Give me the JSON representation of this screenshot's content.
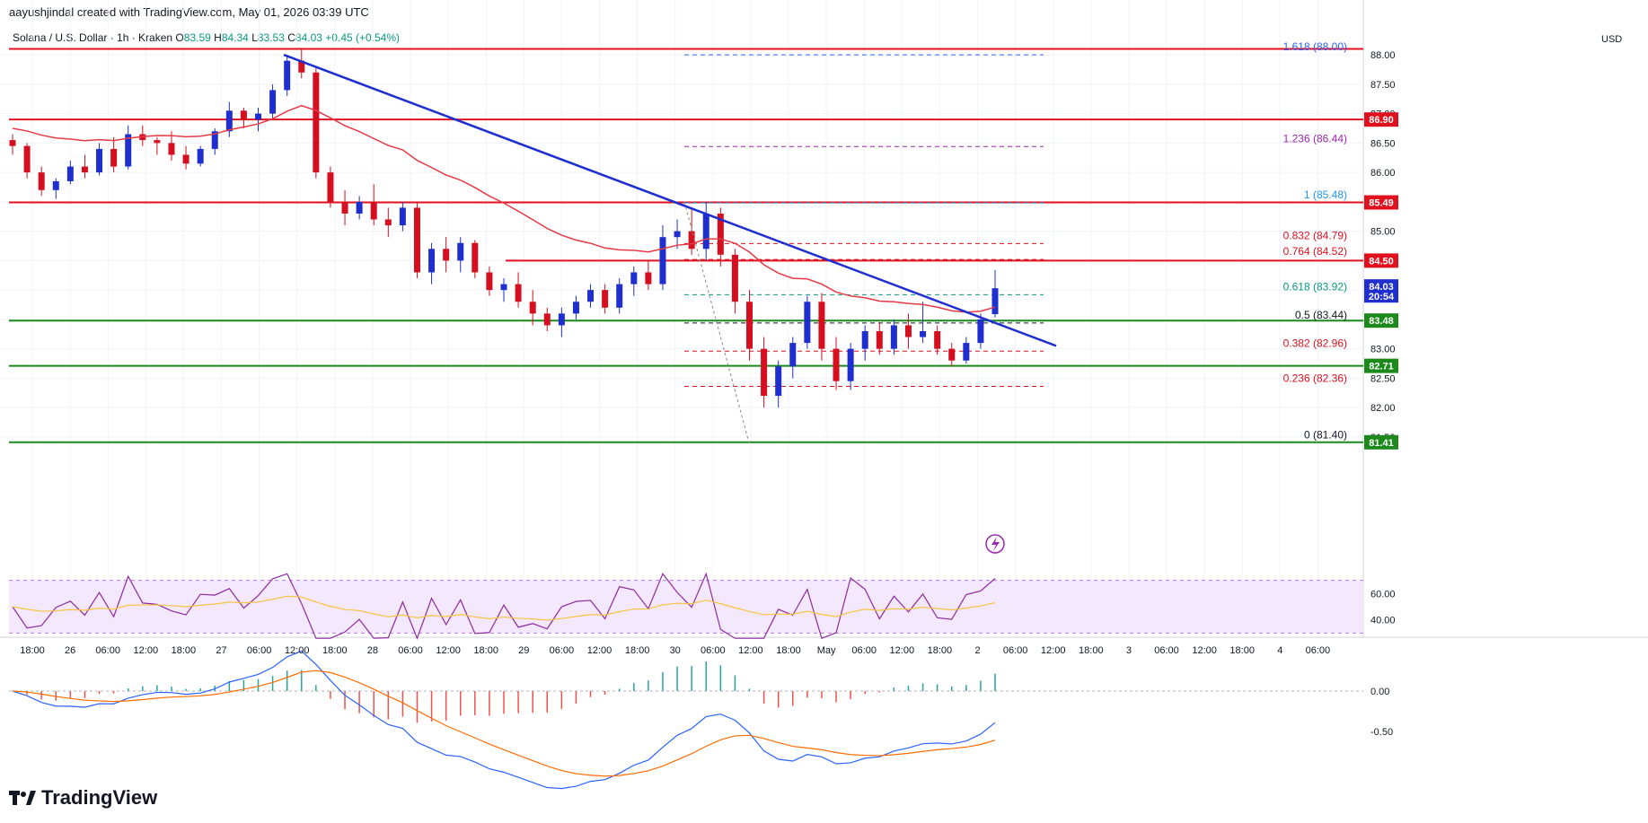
{
  "header": {
    "creator": "aayushjindal created with TradingView.com, May 01, 2026 03:39 UTC"
  },
  "symbol_line": {
    "title": "Solana / U.S. Dollar · 1h · Kraken",
    "open_label": "O",
    "open": "83.59",
    "high_label": "H",
    "high": "84.34",
    "low_label": "L",
    "low": "83.53",
    "close_label": "C",
    "close": "84.03",
    "change": "+0.45 (+0.54%)"
  },
  "currency": "USD",
  "brand": "TradingView",
  "chart_data": {
    "type": "candlestick",
    "symbol": "Solana / U.S. Dollar",
    "interval": "1h",
    "exchange": "Kraken",
    "ylim": [
      81.3,
      88.2
    ],
    "x_ticks": [
      "18:00",
      "26",
      "06:00",
      "12:00",
      "18:00",
      "27",
      "06:00",
      "12:00",
      "18:00",
      "28",
      "06:00",
      "12:00",
      "18:00",
      "29",
      "06:00",
      "12:00",
      "18:00",
      "30",
      "06:00",
      "12:00",
      "18:00",
      "May",
      "06:00",
      "12:00",
      "18:00",
      "2",
      "06:00",
      "12:00",
      "18:00",
      "3",
      "06:00",
      "12:00",
      "18:00",
      "4",
      "06:00"
    ],
    "y_ticks": [
      "88.00",
      "87.50",
      "87.00",
      "86.50",
      "86.00",
      "85.50",
      "85.00",
      "84.50",
      "84.00",
      "83.50",
      "83.00",
      "82.50",
      "82.00",
      "81.50"
    ],
    "horizontal_levels": [
      {
        "label": "86.90",
        "value": 86.9,
        "color": "#e0101e"
      },
      {
        "label": "85.49",
        "value": 85.49,
        "color": "#e0101e"
      },
      {
        "label": "84.50",
        "value": 84.5,
        "color": "#e0101e"
      },
      {
        "label": "83.48",
        "value": 83.48,
        "color": "#1b8a1b"
      },
      {
        "label": "82.71",
        "value": 82.71,
        "color": "#1b8a1b"
      },
      {
        "label": "81.41",
        "value": 81.41,
        "color": "#1b8a1b"
      }
    ],
    "top_level": 88.1,
    "last_price": {
      "label": "84.03",
      "countdown": "20:54",
      "value": 84.03
    },
    "fib_levels": [
      {
        "label": "1.618 (88.00)",
        "value": 88.0,
        "color": "#2962ff"
      },
      {
        "label": "1.236 (86.44)",
        "value": 86.44,
        "color": "#9c27b0"
      },
      {
        "label": "1 (85.48)",
        "value": 85.48,
        "color": "#2196f3"
      },
      {
        "label": "0.832 (84.79)",
        "value": 84.79,
        "color": "#e0101e"
      },
      {
        "label": "0.764 (84.52)",
        "value": 84.52,
        "color": "#e0101e"
      },
      {
        "label": "0.618 (83.92)",
        "value": 83.92,
        "color": "#089981"
      },
      {
        "label": "0.5 (83.44)",
        "value": 83.44,
        "color": "#131722"
      },
      {
        "label": "0.382 (82.96)",
        "value": 82.96,
        "color": "#e0101e"
      },
      {
        "label": "0.236 (82.36)",
        "value": 82.36,
        "color": "#e0101e"
      },
      {
        "label": "0 (81.40)",
        "value": 81.4,
        "color": "#131722"
      }
    ],
    "trendline": {
      "from": [
        0.0,
        88.0
      ],
      "to": [
        0.0,
        83.05
      ],
      "color": "#1f2fcf"
    },
    "rsi": {
      "y_ticks": [
        "60.00",
        "40.00"
      ],
      "band": [
        30,
        70
      ]
    },
    "macd": {
      "y_ticks": [
        "0.00",
        "-0.50"
      ]
    },
    "candles": [
      [
        86.55,
        86.65,
        86.3,
        86.45
      ],
      [
        86.45,
        86.5,
        85.9,
        86.0
      ],
      [
        86.0,
        86.1,
        85.6,
        85.7
      ],
      [
        85.7,
        85.9,
        85.55,
        85.85
      ],
      [
        85.85,
        86.2,
        85.8,
        86.1
      ],
      [
        86.1,
        86.3,
        85.9,
        86.0
      ],
      [
        86.0,
        86.5,
        85.95,
        86.4
      ],
      [
        86.4,
        86.6,
        86.0,
        86.1
      ],
      [
        86.1,
        86.8,
        86.05,
        86.65
      ],
      [
        86.65,
        86.8,
        86.45,
        86.55
      ],
      [
        86.55,
        86.6,
        86.3,
        86.5
      ],
      [
        86.5,
        86.7,
        86.2,
        86.3
      ],
      [
        86.3,
        86.45,
        86.05,
        86.15
      ],
      [
        86.15,
        86.45,
        86.1,
        86.4
      ],
      [
        86.4,
        86.75,
        86.3,
        86.7
      ],
      [
        86.7,
        87.2,
        86.6,
        87.05
      ],
      [
        87.05,
        87.1,
        86.75,
        86.9
      ],
      [
        86.9,
        87.1,
        86.7,
        87.0
      ],
      [
        87.0,
        87.5,
        86.9,
        87.4
      ],
      [
        87.4,
        88.0,
        87.3,
        87.9
      ],
      [
        87.9,
        88.1,
        87.6,
        87.7
      ],
      [
        87.7,
        87.8,
        85.9,
        86.0
      ],
      [
        86.0,
        86.1,
        85.4,
        85.5
      ],
      [
        85.5,
        85.7,
        85.1,
        85.3
      ],
      [
        85.3,
        85.6,
        85.2,
        85.5
      ],
      [
        85.5,
        85.8,
        85.1,
        85.2
      ],
      [
        85.2,
        85.4,
        84.9,
        85.1
      ],
      [
        85.1,
        85.5,
        85.0,
        85.4
      ],
      [
        85.4,
        85.5,
        84.2,
        84.3
      ],
      [
        84.3,
        84.8,
        84.1,
        84.7
      ],
      [
        84.7,
        84.9,
        84.3,
        84.5
      ],
      [
        84.5,
        84.9,
        84.3,
        84.8
      ],
      [
        84.8,
        84.85,
        84.2,
        84.3
      ],
      [
        84.3,
        84.4,
        83.9,
        84.0
      ],
      [
        84.0,
        84.2,
        83.8,
        84.1
      ],
      [
        84.1,
        84.3,
        83.7,
        83.8
      ],
      [
        83.8,
        84.0,
        83.4,
        83.6
      ],
      [
        83.6,
        83.7,
        83.3,
        83.4
      ],
      [
        83.4,
        83.7,
        83.2,
        83.6
      ],
      [
        83.6,
        83.9,
        83.5,
        83.8
      ],
      [
        83.8,
        84.1,
        83.7,
        84.0
      ],
      [
        84.0,
        84.1,
        83.6,
        83.7
      ],
      [
        83.7,
        84.2,
        83.6,
        84.1
      ],
      [
        84.1,
        84.4,
        83.9,
        84.3
      ],
      [
        84.3,
        84.5,
        84.0,
        84.1
      ],
      [
        84.1,
        85.1,
        84.0,
        84.9
      ],
      [
        84.9,
        85.2,
        84.7,
        85.0
      ],
      [
        85.0,
        85.4,
        84.6,
        84.7
      ],
      [
        84.7,
        85.5,
        84.5,
        85.3
      ],
      [
        85.3,
        85.4,
        84.4,
        84.6
      ],
      [
        84.6,
        84.7,
        83.6,
        83.8
      ],
      [
        83.8,
        84.0,
        82.8,
        83.0
      ],
      [
        83.0,
        83.2,
        82.0,
        82.2
      ],
      [
        82.2,
        82.8,
        82.0,
        82.7
      ],
      [
        82.7,
        83.2,
        82.5,
        83.1
      ],
      [
        83.1,
        83.9,
        83.0,
        83.8
      ],
      [
        83.8,
        83.95,
        82.8,
        83.0
      ],
      [
        83.0,
        83.2,
        82.3,
        82.45
      ],
      [
        82.45,
        83.1,
        82.3,
        83.0
      ],
      [
        83.0,
        83.4,
        82.8,
        83.3
      ],
      [
        83.3,
        83.45,
        82.9,
        83.0
      ],
      [
        83.0,
        83.5,
        82.9,
        83.4
      ],
      [
        83.4,
        83.6,
        83.0,
        83.2
      ],
      [
        83.2,
        83.8,
        83.1,
        83.3
      ],
      [
        83.3,
        83.4,
        82.9,
        83.0
      ],
      [
        83.0,
        83.1,
        82.7,
        82.8
      ],
      [
        82.8,
        83.2,
        82.75,
        83.1
      ],
      [
        83.1,
        83.6,
        83.0,
        83.5
      ],
      [
        83.59,
        84.34,
        83.53,
        84.03
      ]
    ]
  }
}
